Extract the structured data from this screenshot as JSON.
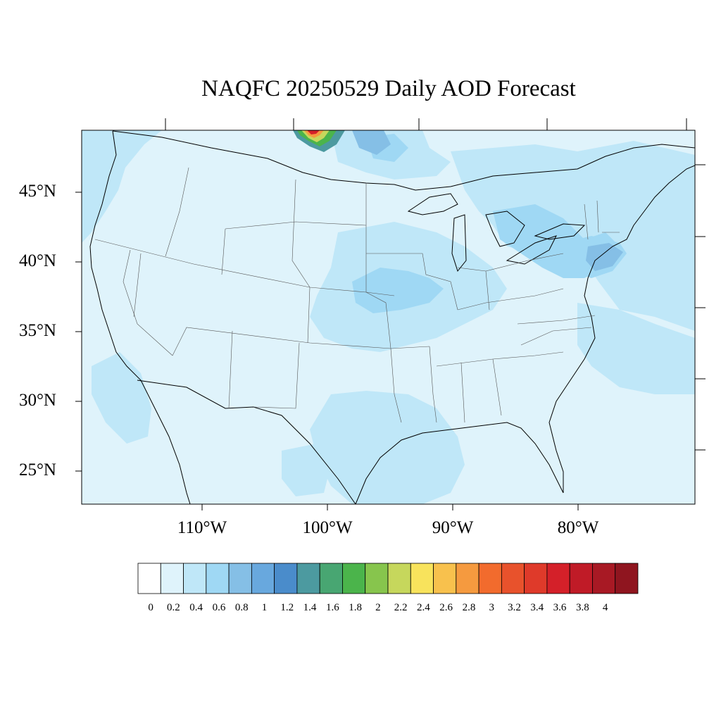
{
  "title": "NAQFC 20250529 Daily AOD Forecast",
  "map": {
    "lat_labels": [
      "45°N",
      "40°N",
      "35°N",
      "30°N",
      "25°N"
    ],
    "lon_labels": [
      "110°W",
      "100°W",
      "90°W",
      "80°W"
    ],
    "lat_values": [
      45,
      40,
      35,
      30,
      25
    ],
    "lon_values": [
      -110,
      -100,
      -90,
      -80
    ],
    "background_color": "#dff3fb",
    "boundary_color": "#000000"
  },
  "colorbar": {
    "tick_labels": [
      "0",
      "0.2",
      "0.4",
      "0.6",
      "0.8",
      "1",
      "1.2",
      "1.4",
      "1.6",
      "1.8",
      "2",
      "2.2",
      "2.4",
      "2.6",
      "2.8",
      "3",
      "3.2",
      "3.4",
      "3.6",
      "3.8",
      "4"
    ],
    "colors": [
      "#ffffff",
      "#dff3fb",
      "#bfe7f8",
      "#9fd8f4",
      "#85bfe6",
      "#68a8de",
      "#4a8ccb",
      "#4c9aa0",
      "#48a672",
      "#4bb44b",
      "#87c54d",
      "#c6d75c",
      "#f8e35c",
      "#f8c14d",
      "#f59a3f",
      "#f26b2d",
      "#e8522c",
      "#df3a2a",
      "#d42029",
      "#c01b27",
      "#a81924",
      "#8f151f"
    ]
  }
}
